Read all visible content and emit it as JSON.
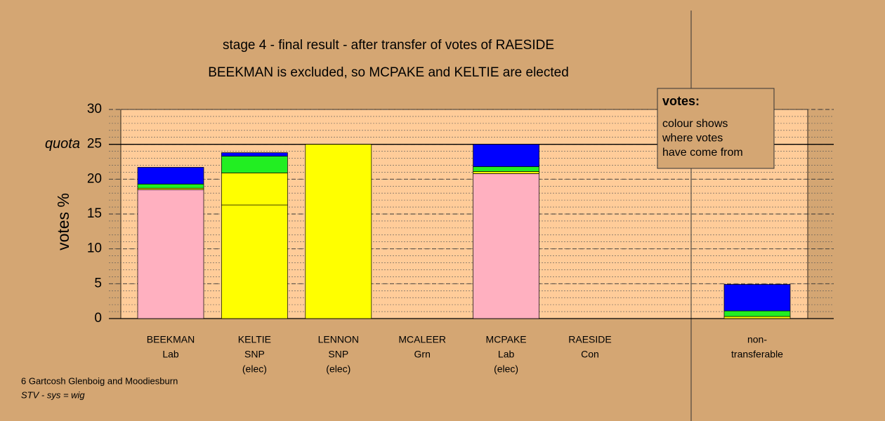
{
  "chart_data": {
    "type": "stacked-bar",
    "title": "stage 4 - final result - after transfer of votes of RAESIDE",
    "subtitle": "BEEKMAN is excluded, so MCPAKE and KELTIE are elected",
    "ylabel": "votes %",
    "categories": [
      [
        "BEEKMAN",
        "Lab"
      ],
      [
        "KELTIE",
        "SNP",
        "(elec)"
      ],
      [
        "LENNON",
        "SNP",
        "(elec)"
      ],
      [
        "MCALEER",
        "Grn"
      ],
      [
        "MCPAKE",
        "Lab",
        "(elec)"
      ],
      [
        "RAESIDE",
        "Con"
      ],
      [
        "non-",
        "transferable"
      ]
    ],
    "series": [
      {
        "color": "#ffb0c0",
        "values": [
          18.5,
          0,
          0,
          0,
          20.8,
          0,
          0
        ]
      },
      {
        "color": "#ffff00",
        "values": [
          0.2,
          16.3,
          25,
          0,
          0.3,
          0,
          0.3
        ]
      },
      {
        "color": "#ffff00",
        "values": [
          0,
          4.6,
          0,
          0,
          0,
          0,
          0
        ]
      },
      {
        "color": "#22ee22",
        "values": [
          0.6,
          2.4,
          0,
          0,
          0.7,
          0,
          0.8
        ]
      },
      {
        "color": "#0000ff",
        "values": [
          2.4,
          0.5,
          0,
          0,
          3.2,
          0,
          3.8
        ]
      }
    ],
    "ylim": [
      0,
      30
    ],
    "yticks": [
      0,
      5,
      10,
      15,
      20,
      25,
      30
    ],
    "quota": {
      "value": 25,
      "label": "quota"
    },
    "grid": true,
    "note": {
      "title": "votes:",
      "lines": [
        "colour shows",
        "where votes",
        "have come from"
      ]
    },
    "footer": {
      "ward": "6 Gartcosh Glenboig and Moodiesburn",
      "system": "STV - sys = wig"
    }
  }
}
